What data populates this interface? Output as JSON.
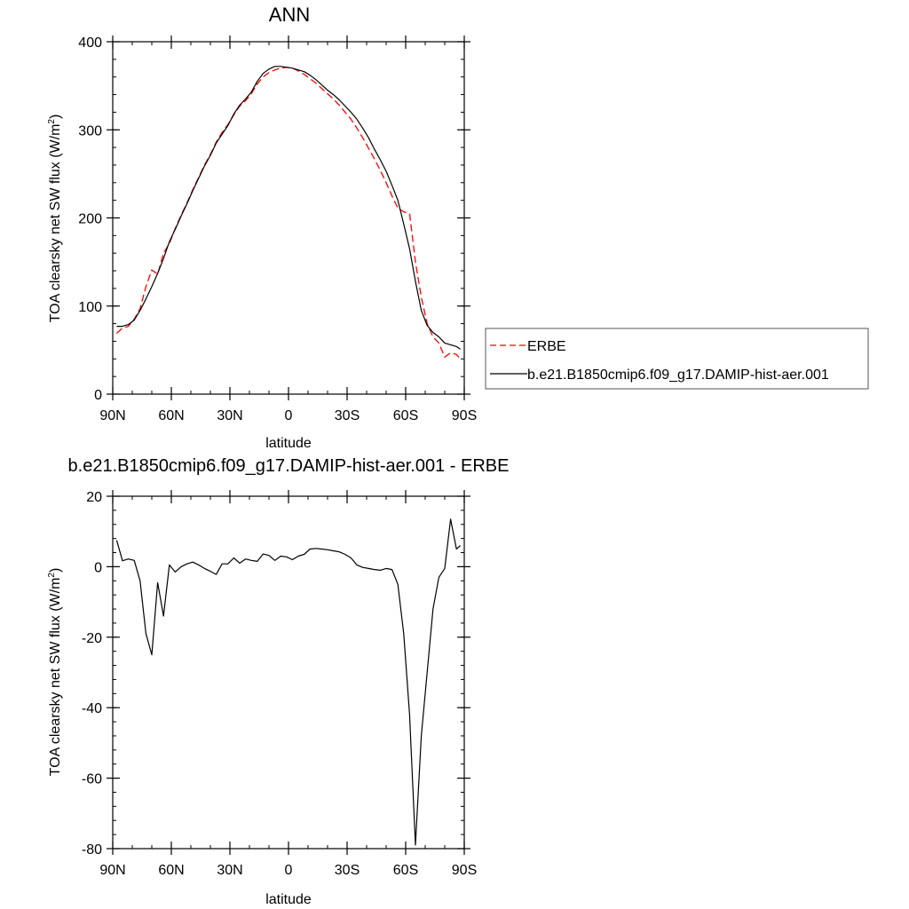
{
  "chart_data": [
    {
      "type": "line",
      "title": "ANN",
      "xlabel": "latitude",
      "ylabel": "TOA clearsky net SW flux (W/m",
      "ylabel_sup": "2",
      "ylabel_close": ")",
      "xlim": [
        90,
        -90
      ],
      "ylim": [
        0,
        400
      ],
      "xticks": [
        90,
        60,
        30,
        0,
        -30,
        -60,
        -90
      ],
      "xtick_labels": [
        "90N",
        "60N",
        "30N",
        "0",
        "30S",
        "60S",
        "90S"
      ],
      "yticks": [
        0,
        100,
        200,
        300,
        400
      ],
      "ytick_labels": [
        "0",
        "100",
        "200",
        "300",
        "400"
      ],
      "legend": "right",
      "series": [
        {
          "name": "ERBE",
          "color": "#ff0000",
          "dash": "dashed",
          "x": [
            88,
            85,
            82,
            79,
            76,
            73,
            70,
            67,
            64,
            61,
            58,
            55,
            52,
            49,
            46,
            43,
            40,
            37,
            34,
            31,
            28,
            25,
            22,
            19,
            16,
            13,
            10,
            7,
            4,
            1,
            -2,
            -5,
            -8,
            -11,
            -14,
            -17,
            -20,
            -23,
            -26,
            -29,
            -32,
            -35,
            -38,
            -41,
            -44,
            -47,
            -50,
            -53,
            -56,
            -59,
            -62,
            -65,
            -68,
            -71,
            -74,
            -77,
            -80,
            -83,
            -86,
            -88
          ],
          "y": [
            69,
            75,
            77,
            85,
            97,
            122,
            141,
            136,
            160,
            171,
            188,
            203,
            217,
            232,
            246,
            260,
            272,
            286,
            297,
            306,
            317,
            327,
            333,
            341,
            352,
            360,
            365,
            368,
            370,
            371,
            370,
            367,
            363,
            358,
            353,
            347,
            341,
            335,
            328,
            320,
            312,
            302,
            291,
            279,
            267,
            254,
            240,
            225,
            211,
            207,
            205,
            150,
            110,
            80,
            65,
            58,
            42,
            47,
            45,
            40
          ]
        },
        {
          "name": "b.e21.B1850cmip6.f09_g17.DAMIP-hist-aer.001",
          "color": "#000000",
          "dash": "solid",
          "x": [
            88,
            85,
            82,
            79,
            76,
            73,
            70,
            67,
            64,
            61,
            58,
            55,
            52,
            49,
            46,
            43,
            40,
            37,
            34,
            31,
            28,
            25,
            22,
            19,
            16,
            13,
            10,
            7,
            4,
            1,
            -2,
            -5,
            -8,
            -11,
            -14,
            -17,
            -20,
            -23,
            -26,
            -29,
            -32,
            -35,
            -38,
            -41,
            -44,
            -47,
            -50,
            -53,
            -56,
            -59,
            -62,
            -65,
            -68,
            -71,
            -74,
            -77,
            -80,
            -83,
            -86,
            -88
          ],
          "y": [
            77,
            77,
            79,
            84,
            95,
            108,
            122,
            137,
            154,
            173,
            187,
            202,
            216,
            231,
            245,
            259,
            271,
            285,
            295,
            305,
            318,
            328,
            335,
            343,
            355,
            364,
            369,
            372,
            372,
            371,
            370,
            368,
            366,
            362,
            357,
            351,
            345,
            340,
            334,
            327,
            320,
            312,
            302,
            291,
            278,
            266,
            253,
            237,
            220,
            193,
            165,
            128,
            95,
            78,
            70,
            65,
            58,
            56,
            54,
            51
          ]
        }
      ]
    },
    {
      "type": "line",
      "title": "b.e21.B1850cmip6.f09_g17.DAMIP-hist-aer.001 - ERBE",
      "xlabel": "latitude",
      "ylabel": "TOA clearsky net SW flux (W/m",
      "ylabel_sup": "2",
      "ylabel_close": ")",
      "xlim": [
        90,
        -90
      ],
      "ylim": [
        -80,
        20
      ],
      "xticks": [
        90,
        60,
        30,
        0,
        -30,
        -60,
        -90
      ],
      "xtick_labels": [
        "90N",
        "60N",
        "30N",
        "0",
        "30S",
        "60S",
        "90S"
      ],
      "yticks": [
        -80,
        -60,
        -40,
        -20,
        0,
        20
      ],
      "ytick_labels": [
        "-80",
        "-60",
        "-40",
        "-20",
        "0",
        "20"
      ],
      "series": [
        {
          "color": "#000000",
          "dash": "solid",
          "x": [
            88,
            85,
            82,
            79,
            76,
            73,
            70,
            67,
            64,
            61,
            58,
            55,
            52,
            49,
            46,
            43,
            40,
            37,
            34,
            31,
            28,
            25,
            22,
            19,
            16,
            13,
            10,
            7,
            4,
            1,
            -2,
            -5,
            -8,
            -11,
            -14,
            -17,
            -20,
            -23,
            -26,
            -29,
            -32,
            -35,
            -38,
            -41,
            -44,
            -47,
            -50,
            -53,
            -56,
            -59,
            -62,
            -65,
            -68,
            -71,
            -74,
            -77,
            -80,
            -83,
            -86,
            -88
          ],
          "y": [
            7.5,
            1.7,
            2.2,
            1.8,
            -4,
            -19,
            -25,
            -4.5,
            -14,
            0.5,
            -1.5,
            0,
            0.8,
            1.3,
            0.5,
            -0.5,
            -1.3,
            -2.2,
            0.8,
            0.8,
            2.5,
            1,
            2.2,
            1.8,
            1.5,
            3.6,
            3.2,
            1.8,
            3,
            2.8,
            2,
            3,
            3.5,
            5,
            5.2,
            5,
            4.8,
            4.5,
            4.2,
            3.5,
            2.5,
            0.5,
            -0.2,
            -0.5,
            -0.8,
            -1,
            -0.5,
            -0.8,
            -5,
            -19,
            -42,
            -79,
            -48,
            -30,
            -12,
            -3,
            -0.5,
            13.5,
            5,
            6
          ]
        }
      ]
    }
  ]
}
